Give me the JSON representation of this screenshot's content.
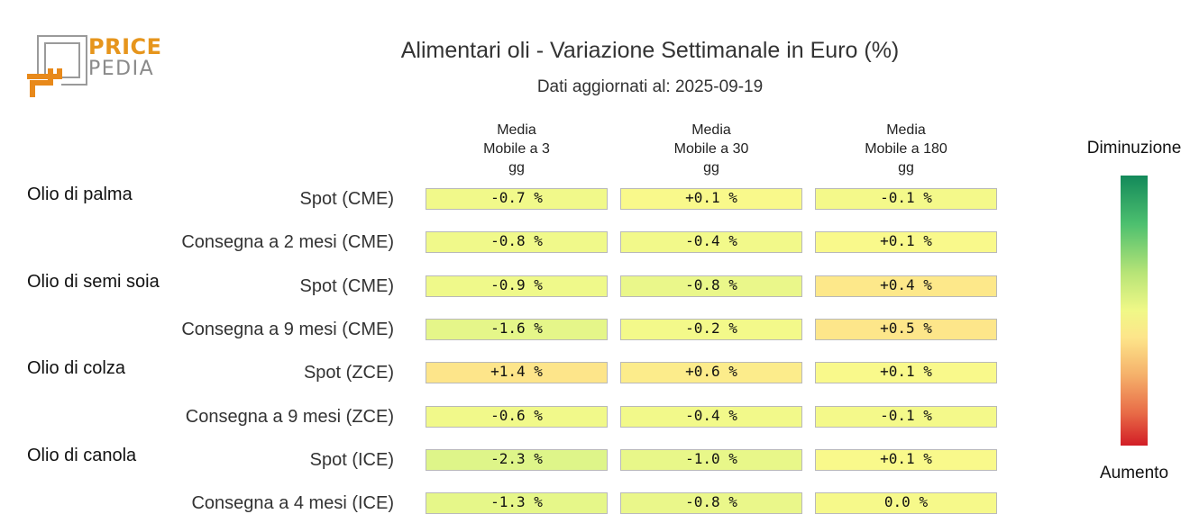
{
  "logo": {
    "price": "PRICE",
    "pedia": "PEDIA"
  },
  "chart_data": {
    "type": "heatmap",
    "title": "Alimentari oli - Variazione Settimanale in Euro (%)",
    "subtitle": "Dati aggiornati al: 2025-09-19",
    "columns": [
      [
        "Media",
        "Mobile a 3",
        "gg"
      ],
      [
        "Media",
        "Mobile a 30",
        "gg"
      ],
      [
        "Media",
        "Mobile a 180",
        "gg"
      ]
    ],
    "groups": [
      {
        "name": "Olio di palma",
        "rows": [
          {
            "label": "Spot (CME)",
            "values": [
              "-0.7 %",
              "+0.1 %",
              "-0.1 %"
            ],
            "colors": [
              "#f1f98a",
              "#f9f98b",
              "#f4f98a"
            ]
          },
          {
            "label": "Consegna a 2 mesi (CME)",
            "values": [
              "-0.8 %",
              "-0.4 %",
              "+0.1 %"
            ],
            "colors": [
              "#f0f98a",
              "#f2f98a",
              "#f9f98b"
            ]
          }
        ]
      },
      {
        "name": "Olio di semi soia",
        "rows": [
          {
            "label": "Spot (CME)",
            "values": [
              "-0.9 %",
              "-0.8 %",
              "+0.4 %"
            ],
            "colors": [
              "#eff98a",
              "#eaf78a",
              "#fde88a"
            ]
          },
          {
            "label": "Consegna a 9 mesi (CME)",
            "values": [
              "-1.6 %",
              "-0.2 %",
              "+0.5 %"
            ],
            "colors": [
              "#e5f689",
              "#f3f98a",
              "#fde68a"
            ]
          }
        ]
      },
      {
        "name": "Olio di colza",
        "rows": [
          {
            "label": "Spot (ZCE)",
            "values": [
              "+1.4 %",
              "+0.6 %",
              "+0.1 %"
            ],
            "colors": [
              "#fde58a",
              "#fcec8b",
              "#f9f98b"
            ]
          },
          {
            "label": "Consegna a 9 mesi (ZCE)",
            "values": [
              "-0.6 %",
              "-0.4 %",
              "-0.1 %"
            ],
            "colors": [
              "#f1f98a",
              "#f2f98a",
              "#f4f98a"
            ]
          }
        ]
      },
      {
        "name": "Olio di canola",
        "rows": [
          {
            "label": "Spot (ICE)",
            "values": [
              "-2.3 %",
              "-1.0 %",
              "+0.1 %"
            ],
            "colors": [
              "#def589",
              "#e8f789",
              "#f9f98b"
            ]
          },
          {
            "label": "Consegna a 4 mesi (ICE)",
            "values": [
              "-1.3 %",
              "-0.8 %",
              "0.0 %"
            ],
            "colors": [
              "#e6f789",
              "#eaf78a",
              "#f6f98a"
            ]
          }
        ]
      }
    ],
    "legend": {
      "top": "Diminuzione",
      "bottom": "Aumento"
    }
  }
}
